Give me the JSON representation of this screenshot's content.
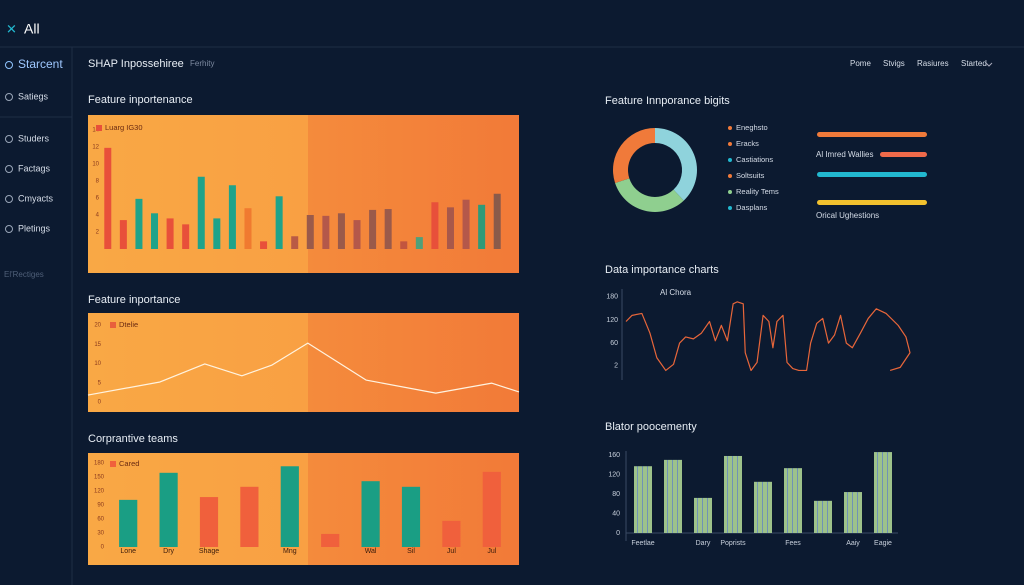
{
  "header": {
    "app": "All",
    "title": "SHAP Inpossehiree",
    "subtitle": "Ferhity",
    "nav": [
      "Pome",
      "Stvigs",
      "Rasiures",
      "Started"
    ]
  },
  "sidebar": [
    "Starcent",
    "Satiegs",
    "Studers",
    "Factags",
    "Cmyacts",
    "Pletings",
    "El'Rectiges"
  ],
  "widget": {
    "labels": [
      "Al Imred Wallies",
      "Orical Ughestions"
    ]
  },
  "chart_data": [
    {
      "type": "bar",
      "title": "Feature inportenance",
      "series": [
        {
          "name": "Luarg IG30",
          "color": "#e8503a",
          "values": [
            11.9,
            3.4,
            5.9,
            4.2,
            3.6,
            2.9,
            8.5,
            3.6,
            7.5,
            4.8,
            0.9,
            6.2,
            1.5,
            4,
            3.9,
            4.2,
            3.4,
            4.6,
            4.7,
            0.9,
            1.4,
            5.5,
            4.9,
            5.8,
            5.2,
            6.5
          ]
        }
      ],
      "bar_colors": [
        "#e8503a",
        "#e8503a",
        "#1fa38a",
        "#1fa38a",
        "#e8503a",
        "#e8503a",
        "#1fa38a",
        "#1fa38a",
        "#1fa38a",
        "#f07a30",
        "#e8503a",
        "#1fa38a",
        "#b95a45",
        "#9a5a4a",
        "#b4584a",
        "#9a5a4a",
        "#b4584a",
        "#9a5a4a",
        "#9a5a4a",
        "#c2553f",
        "#4fa07a",
        "#e8503a",
        "#a8584a",
        "#b4584a",
        "#2f9a78",
        "#8a5a4a"
      ],
      "ylim": [
        0,
        14
      ],
      "yticks": [
        2,
        4,
        6,
        8,
        10,
        12,
        14
      ]
    },
    {
      "type": "line",
      "title": "Feature inportance",
      "x": [
        0,
        16.7,
        27.1,
        35.7,
        42.7,
        51.0,
        64.5,
        80.7,
        93.7,
        100
      ],
      "series": [
        {
          "name": "Dtelie",
          "color": "#fff3e0",
          "values": [
            1.8,
            5.2,
            9.9,
            6.8,
            9.6,
            15.3,
            5.7,
            2.3,
            4.9,
            2.6
          ]
        }
      ],
      "legend_color": "#e8603c",
      "xlim": [
        0,
        100
      ],
      "ylim": [
        0,
        20
      ],
      "yticks": [
        0,
        5,
        10,
        15,
        20
      ]
    },
    {
      "type": "bar",
      "title": "Corprantive teams",
      "categories": [
        "Lone",
        "Dry",
        "Shage",
        null,
        "Mng",
        null,
        "Wal",
        "Sil",
        "Jul",
        "Jul"
      ],
      "series": [
        {
          "name": "Cared",
          "color": "#f0603c",
          "values": [
            101,
            159,
            107,
            129,
            173,
            28,
            141,
            129,
            56,
            161
          ]
        }
      ],
      "bar_colors": [
        "#1a9e84",
        "#1a9e84",
        "#f0603c",
        "#f0603c",
        "#1a9e84",
        "#f0603c",
        "#1a9e84",
        "#1a9e84",
        "#f0603c",
        "#f0603c"
      ],
      "ylim": [
        0,
        180
      ],
      "yticks": [
        0,
        30,
        60,
        90,
        120,
        150,
        180
      ]
    },
    {
      "type": "pie",
      "title": "Feature Innporance bigits",
      "values": [
        38,
        32,
        30
      ],
      "colors": [
        "#8fd3dc",
        "#8fcf8f",
        "#f07a3a"
      ],
      "legend": [
        {
          "name": "Eneghsto",
          "color": "#f07a3a"
        },
        {
          "name": "Eracks",
          "color": "#f07a3a"
        },
        {
          "name": "Castiations",
          "color": "#22b8cf"
        },
        {
          "name": "Soltsuits",
          "color": "#f07a3a"
        },
        {
          "name": "Reality Tems",
          "color": "#8fcf8f"
        },
        {
          "name": "Dasplans",
          "color": "#22b8cf"
        }
      ]
    },
    {
      "type": "line",
      "title": "Data importance charts",
      "subtitle": "Al Chora",
      "color": "#e8663a",
      "x": [
        0.7,
        2.8,
        6.2,
        9.0,
        11.4,
        14.5,
        17.2,
        19.3,
        21.4,
        24.1,
        26.9,
        29.7,
        31.7,
        33.8,
        35.9,
        37.9,
        39.3,
        41.4,
        42.1,
        44.1,
        46.2,
        48.3,
        50.3,
        51.7,
        53.1,
        55.2,
        56.6,
        58.6,
        60.7,
        63.4,
        64.8,
        66.9,
        69.0,
        71.0,
        73.1,
        75.2,
        77.2,
        79.3,
        82.1,
        84.8,
        87.6,
        91.0,
        95.2,
        97.9,
        99.3,
        95.9,
        92.4
      ],
      "values": [
        116,
        132,
        137,
        86,
        22,
        -11,
        5,
        60,
        76,
        71,
        86,
        116,
        66,
        106,
        66,
        162,
        167,
        162,
        35,
        -11,
        10,
        132,
        116,
        48,
        116,
        132,
        10,
        -6,
        -11,
        -11,
        60,
        111,
        124,
        60,
        81,
        132,
        60,
        48,
        86,
        124,
        149,
        137,
        106,
        76,
        35,
        -3,
        -11
      ],
      "xlim": [
        0,
        100
      ],
      "ylim": [
        -15,
        190
      ],
      "yticks": [
        2,
        60,
        120,
        180
      ]
    },
    {
      "type": "bar",
      "title": "Blator poocementy",
      "color": "#9dc28a",
      "categories": [
        "Feetlae",
        null,
        "Dary",
        "Poprists",
        null,
        "Fees",
        null,
        "Aaiy",
        "Eagie"
      ],
      "values": [
        137,
        150,
        72,
        158,
        105,
        133,
        66,
        84,
        166
      ],
      "ylim": [
        0,
        160
      ],
      "yticks": [
        0,
        40,
        80,
        120,
        160
      ]
    }
  ]
}
